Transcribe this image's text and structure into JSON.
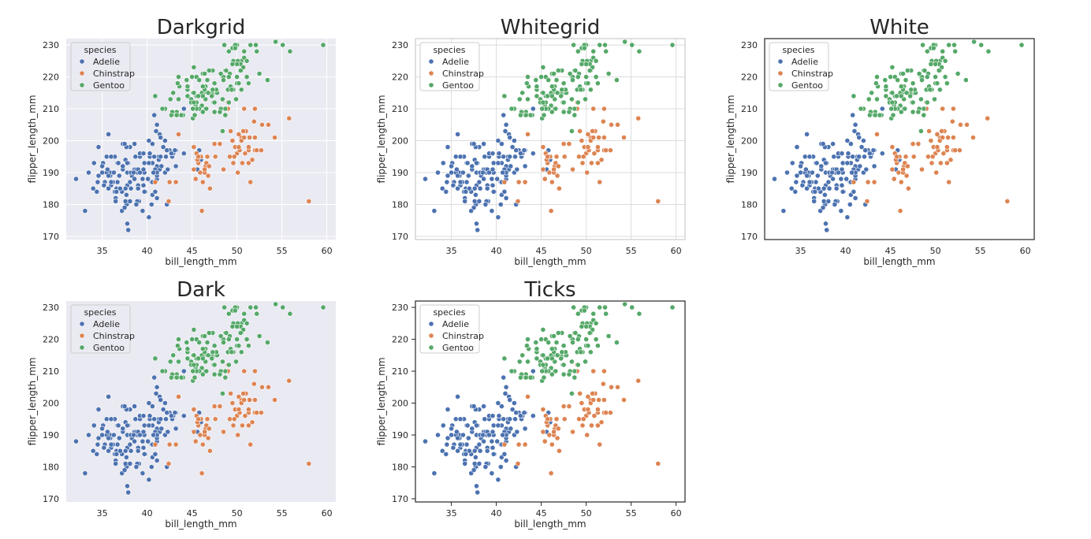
{
  "figure": {
    "x_label": "bill_length_mm",
    "y_label": "flipper_length_mm",
    "x_ticks": [
      35,
      40,
      45,
      50,
      55,
      60
    ],
    "y_ticks": [
      170,
      180,
      190,
      200,
      210,
      220,
      230
    ],
    "legend_title": "species",
    "legend_position": "top-left",
    "series_colors": {
      "Adelie": "#4c72b0",
      "Chinstrap": "#dd8452",
      "Gentoo": "#55a868"
    }
  },
  "chart_data": [
    {
      "type": "scatter",
      "title": "Darkgrid",
      "style": "darkgrid",
      "background": "#eaeaf2",
      "grid": true,
      "frame": false,
      "ticks": false,
      "xlim": [
        31,
        61
      ],
      "ylim": [
        169,
        232
      ]
    },
    {
      "type": "scatter",
      "title": "Whitegrid",
      "style": "whitegrid",
      "background": "#ffffff",
      "grid": true,
      "frame": true,
      "ticks": false,
      "xlim": [
        31,
        61
      ],
      "ylim": [
        169,
        232
      ]
    },
    {
      "type": "scatter",
      "title": "White",
      "style": "white",
      "background": "#ffffff",
      "grid": false,
      "frame": true,
      "ticks": false,
      "xlim": [
        31,
        61
      ],
      "ylim": [
        169,
        232
      ]
    },
    {
      "type": "scatter",
      "title": "Dark",
      "style": "dark",
      "background": "#eaeaf2",
      "grid": false,
      "frame": false,
      "ticks": false,
      "xlim": [
        31,
        61
      ],
      "ylim": [
        169,
        232
      ]
    },
    {
      "type": "scatter",
      "title": "Ticks",
      "style": "ticks",
      "background": "#ffffff",
      "grid": false,
      "frame": true,
      "ticks": true,
      "xlim": [
        31,
        61
      ],
      "ylim": [
        169,
        232
      ]
    }
  ],
  "series": [
    {
      "name": "Adelie",
      "color": "#4c72b0",
      "points": [
        [
          39.1,
          181
        ],
        [
          39.5,
          186
        ],
        [
          40.3,
          195
        ],
        [
          36.7,
          193
        ],
        [
          39.3,
          190
        ],
        [
          38.9,
          181
        ],
        [
          39.2,
          195
        ],
        [
          34.1,
          193
        ],
        [
          42.0,
          190
        ],
        [
          37.8,
          186
        ],
        [
          37.8,
          180
        ],
        [
          41.1,
          182
        ],
        [
          38.6,
          191
        ],
        [
          34.6,
          198
        ],
        [
          36.6,
          185
        ],
        [
          38.7,
          195
        ],
        [
          42.5,
          197
        ],
        [
          34.4,
          184
        ],
        [
          46.0,
          194
        ],
        [
          37.8,
          174
        ],
        [
          37.7,
          180
        ],
        [
          35.9,
          189
        ],
        [
          38.2,
          185
        ],
        [
          38.8,
          180
        ],
        [
          35.3,
          187
        ],
        [
          40.6,
          183
        ],
        [
          40.5,
          187
        ],
        [
          37.9,
          172
        ],
        [
          40.5,
          180
        ],
        [
          39.5,
          178
        ],
        [
          37.2,
          178
        ],
        [
          39.5,
          188
        ],
        [
          40.9,
          184
        ],
        [
          36.4,
          195
        ],
        [
          39.2,
          196
        ],
        [
          38.8,
          190
        ],
        [
          42.2,
          180
        ],
        [
          37.6,
          181
        ],
        [
          39.8,
          184
        ],
        [
          36.5,
          182
        ],
        [
          40.8,
          195
        ],
        [
          36.0,
          186
        ],
        [
          44.1,
          196
        ],
        [
          37.0,
          185
        ],
        [
          39.6,
          190
        ],
        [
          41.1,
          182
        ],
        [
          37.5,
          179
        ],
        [
          42.3,
          191
        ],
        [
          39.6,
          186
        ],
        [
          40.1,
          188
        ],
        [
          35.0,
          190
        ],
        [
          42.0,
          200
        ],
        [
          34.5,
          187
        ],
        [
          41.4,
          191
        ],
        [
          39.0,
          186
        ],
        [
          40.6,
          193
        ],
        [
          36.5,
          181
        ],
        [
          37.6,
          194
        ],
        [
          35.7,
          185
        ],
        [
          41.3,
          195
        ],
        [
          37.6,
          185
        ],
        [
          41.1,
          192
        ],
        [
          36.4,
          184
        ],
        [
          41.6,
          192
        ],
        [
          35.5,
          195
        ],
        [
          41.1,
          188
        ],
        [
          35.9,
          190
        ],
        [
          41.8,
          198
        ],
        [
          33.5,
          190
        ],
        [
          39.7,
          190
        ],
        [
          39.6,
          196
        ],
        [
          45.8,
          197
        ],
        [
          35.5,
          190
        ],
        [
          42.8,
          195
        ],
        [
          40.9,
          191
        ],
        [
          37.2,
          184
        ],
        [
          36.2,
          187
        ],
        [
          42.1,
          195
        ],
        [
          34.6,
          189
        ],
        [
          42.9,
          196
        ],
        [
          36.7,
          187
        ],
        [
          35.1,
          193
        ],
        [
          37.3,
          191
        ],
        [
          41.3,
          194
        ],
        [
          36.3,
          190
        ],
        [
          36.9,
          189
        ],
        [
          38.3,
          189
        ],
        [
          38.9,
          190
        ],
        [
          35.7,
          202
        ],
        [
          41.1,
          205
        ],
        [
          34.0,
          185
        ],
        [
          39.6,
          186
        ],
        [
          36.2,
          187
        ],
        [
          40.8,
          208
        ],
        [
          38.1,
          190
        ],
        [
          40.3,
          196
        ],
        [
          33.1,
          178
        ],
        [
          43.2,
          192
        ],
        [
          35.0,
          192
        ],
        [
          41.0,
          203
        ],
        [
          37.7,
          183
        ],
        [
          37.8,
          190
        ],
        [
          37.9,
          193
        ],
        [
          39.7,
          184
        ],
        [
          38.6,
          199
        ],
        [
          38.2,
          190
        ],
        [
          38.1,
          181
        ],
        [
          43.2,
          197
        ],
        [
          38.1,
          198
        ],
        [
          45.6,
          191
        ],
        [
          39.7,
          193
        ],
        [
          42.2,
          197
        ],
        [
          39.6,
          191
        ],
        [
          42.7,
          196
        ],
        [
          38.6,
          188
        ],
        [
          37.3,
          199
        ],
        [
          35.7,
          189
        ],
        [
          41.1,
          189
        ],
        [
          36.2,
          187
        ],
        [
          37.7,
          198
        ],
        [
          40.2,
          176
        ],
        [
          41.4,
          202
        ],
        [
          35.2,
          186
        ],
        [
          40.6,
          199
        ],
        [
          38.8,
          191
        ],
        [
          41.5,
          195
        ],
        [
          39.0,
          191
        ],
        [
          44.1,
          210
        ],
        [
          38.5,
          190
        ],
        [
          43.1,
          197
        ],
        [
          36.8,
          193
        ],
        [
          37.5,
          199
        ],
        [
          38.1,
          187
        ],
        [
          41.1,
          190
        ],
        [
          35.6,
          191
        ],
        [
          40.2,
          200
        ],
        [
          37.0,
          185
        ],
        [
          39.7,
          193
        ],
        [
          40.2,
          193
        ],
        [
          40.6,
          187
        ],
        [
          32.1,
          188
        ],
        [
          40.7,
          190
        ],
        [
          37.3,
          192
        ],
        [
          39.0,
          185
        ],
        [
          39.2,
          190
        ],
        [
          36.6,
          184
        ],
        [
          36.0,
          195
        ],
        [
          37.8,
          193
        ],
        [
          36.0,
          187
        ],
        [
          41.5,
          201
        ]
      ]
    },
    {
      "name": "Chinstrap",
      "color": "#dd8452",
      "points": [
        [
          46.5,
          192
        ],
        [
          50.0,
          196
        ],
        [
          51.3,
          193
        ],
        [
          45.4,
          188
        ],
        [
          52.7,
          197
        ],
        [
          45.2,
          198
        ],
        [
          46.1,
          178
        ],
        [
          51.3,
          197
        ],
        [
          46.0,
          195
        ],
        [
          51.3,
          198
        ],
        [
          46.6,
          193
        ],
        [
          51.7,
          194
        ],
        [
          47.0,
          185
        ],
        [
          52.0,
          201
        ],
        [
          45.9,
          190
        ],
        [
          50.5,
          201
        ],
        [
          50.3,
          197
        ],
        [
          58.0,
          181
        ],
        [
          46.4,
          190
        ],
        [
          49.2,
          195
        ],
        [
          42.4,
          181
        ],
        [
          48.5,
          191
        ],
        [
          43.2,
          187
        ],
        [
          50.6,
          193
        ],
        [
          46.7,
          195
        ],
        [
          52.0,
          197
        ],
        [
          50.5,
          200
        ],
        [
          49.5,
          200
        ],
        [
          46.4,
          191
        ],
        [
          52.8,
          205
        ],
        [
          40.9,
          187
        ],
        [
          54.2,
          201
        ],
        [
          42.5,
          187
        ],
        [
          51.0,
          203
        ],
        [
          49.7,
          195
        ],
        [
          47.5,
          199
        ],
        [
          47.6,
          195
        ],
        [
          52.0,
          210
        ],
        [
          46.9,
          192
        ],
        [
          53.5,
          205
        ],
        [
          49.0,
          210
        ],
        [
          46.2,
          187
        ],
        [
          50.9,
          196
        ],
        [
          45.5,
          196
        ],
        [
          50.9,
          196
        ],
        [
          50.8,
          201
        ],
        [
          50.1,
          190
        ],
        [
          49.0,
          212
        ],
        [
          51.5,
          187
        ],
        [
          49.8,
          198
        ],
        [
          48.1,
          199
        ],
        [
          51.4,
          201
        ],
        [
          45.7,
          193
        ],
        [
          50.7,
          203
        ],
        [
          42.5,
          187
        ],
        [
          52.2,
          197
        ],
        [
          45.2,
          191
        ],
        [
          49.3,
          203
        ],
        [
          50.2,
          202
        ],
        [
          45.6,
          194
        ],
        [
          51.9,
          206
        ],
        [
          46.8,
          189
        ],
        [
          45.7,
          195
        ],
        [
          55.8,
          207
        ],
        [
          43.5,
          202
        ],
        [
          49.6,
          193
        ],
        [
          50.8,
          210
        ],
        [
          50.2,
          198
        ]
      ]
    },
    {
      "name": "Gentoo",
      "color": "#55a868",
      "points": [
        [
          46.1,
          211
        ],
        [
          50.0,
          230
        ],
        [
          48.7,
          210
        ],
        [
          50.0,
          218
        ],
        [
          47.6,
          215
        ],
        [
          46.5,
          210
        ],
        [
          45.4,
          211
        ],
        [
          46.7,
          219
        ],
        [
          43.3,
          209
        ],
        [
          46.8,
          215
        ],
        [
          40.9,
          214
        ],
        [
          49.0,
          216
        ],
        [
          45.5,
          214
        ],
        [
          48.4,
          213
        ],
        [
          45.8,
          210
        ],
        [
          49.3,
          217
        ],
        [
          42.0,
          210
        ],
        [
          49.2,
          221
        ],
        [
          46.2,
          209
        ],
        [
          48.7,
          222
        ],
        [
          50.2,
          218
        ],
        [
          45.1,
          215
        ],
        [
          46.5,
          213
        ],
        [
          46.3,
          215
        ],
        [
          42.9,
          215
        ],
        [
          46.1,
          215
        ],
        [
          44.5,
          216
        ],
        [
          47.8,
          215
        ],
        [
          48.2,
          210
        ],
        [
          50.0,
          220
        ],
        [
          47.3,
          222
        ],
        [
          42.8,
          209
        ],
        [
          45.1,
          207
        ],
        [
          59.6,
          230
        ],
        [
          49.1,
          220
        ],
        [
          48.4,
          220
        ],
        [
          42.6,
          213
        ],
        [
          44.4,
          219
        ],
        [
          44.0,
          208
        ],
        [
          48.7,
          208
        ],
        [
          42.7,
          208
        ],
        [
          49.6,
          225
        ],
        [
          45.3,
          210
        ],
        [
          49.6,
          216
        ],
        [
          50.5,
          222
        ],
        [
          43.6,
          217
        ],
        [
          45.5,
          210
        ],
        [
          50.5,
          225
        ],
        [
          44.9,
          213
        ],
        [
          45.2,
          215
        ],
        [
          46.6,
          210
        ],
        [
          48.5,
          220
        ],
        [
          45.1,
          210
        ],
        [
          50.1,
          225
        ],
        [
          46.5,
          217
        ],
        [
          45.0,
          220
        ],
        [
          43.8,
          208
        ],
        [
          45.5,
          220
        ],
        [
          43.2,
          208
        ],
        [
          50.4,
          224
        ],
        [
          45.3,
          208
        ],
        [
          46.2,
          221
        ],
        [
          45.7,
          214
        ],
        [
          54.3,
          231
        ],
        [
          45.8,
          219
        ],
        [
          49.8,
          230
        ],
        [
          46.2,
          214
        ],
        [
          49.5,
          229
        ],
        [
          43.5,
          220
        ],
        [
          50.7,
          223
        ],
        [
          47.7,
          216
        ],
        [
          46.4,
          221
        ],
        [
          48.2,
          221
        ],
        [
          46.5,
          217
        ],
        [
          46.4,
          216
        ],
        [
          48.6,
          230
        ],
        [
          47.5,
          209
        ],
        [
          51.1,
          220
        ],
        [
          45.2,
          215
        ],
        [
          45.2,
          223
        ],
        [
          49.1,
          212
        ],
        [
          52.5,
          221
        ],
        [
          47.4,
          212
        ],
        [
          50.0,
          224
        ],
        [
          44.9,
          212
        ],
        [
          50.8,
          228
        ],
        [
          43.4,
          218
        ],
        [
          51.3,
          218
        ],
        [
          47.5,
          212
        ],
        [
          52.1,
          230
        ],
        [
          47.5,
          218
        ],
        [
          52.2,
          228
        ],
        [
          45.5,
          212
        ],
        [
          49.5,
          224
        ],
        [
          44.5,
          214
        ],
        [
          50.8,
          226
        ],
        [
          49.4,
          216
        ],
        [
          46.9,
          222
        ],
        [
          48.4,
          203
        ],
        [
          51.1,
          225
        ],
        [
          48.5,
          219
        ],
        [
          55.9,
          228
        ],
        [
          47.2,
          215
        ],
        [
          49.1,
          228
        ],
        [
          47.3,
          216
        ],
        [
          46.8,
          215
        ],
        [
          41.7,
          210
        ],
        [
          53.4,
          219
        ],
        [
          43.3,
          208
        ],
        [
          48.1,
          209
        ],
        [
          50.5,
          216
        ],
        [
          49.8,
          229
        ],
        [
          43.5,
          213
        ],
        [
          51.5,
          230
        ],
        [
          46.2,
          217
        ],
        [
          55.1,
          230
        ],
        [
          44.5,
          217
        ],
        [
          48.8,
          222
        ],
        [
          47.2,
          214
        ],
        [
          46.8,
          215
        ],
        [
          50.4,
          222
        ],
        [
          45.2,
          212
        ],
        [
          49.9,
          213
        ]
      ]
    }
  ]
}
